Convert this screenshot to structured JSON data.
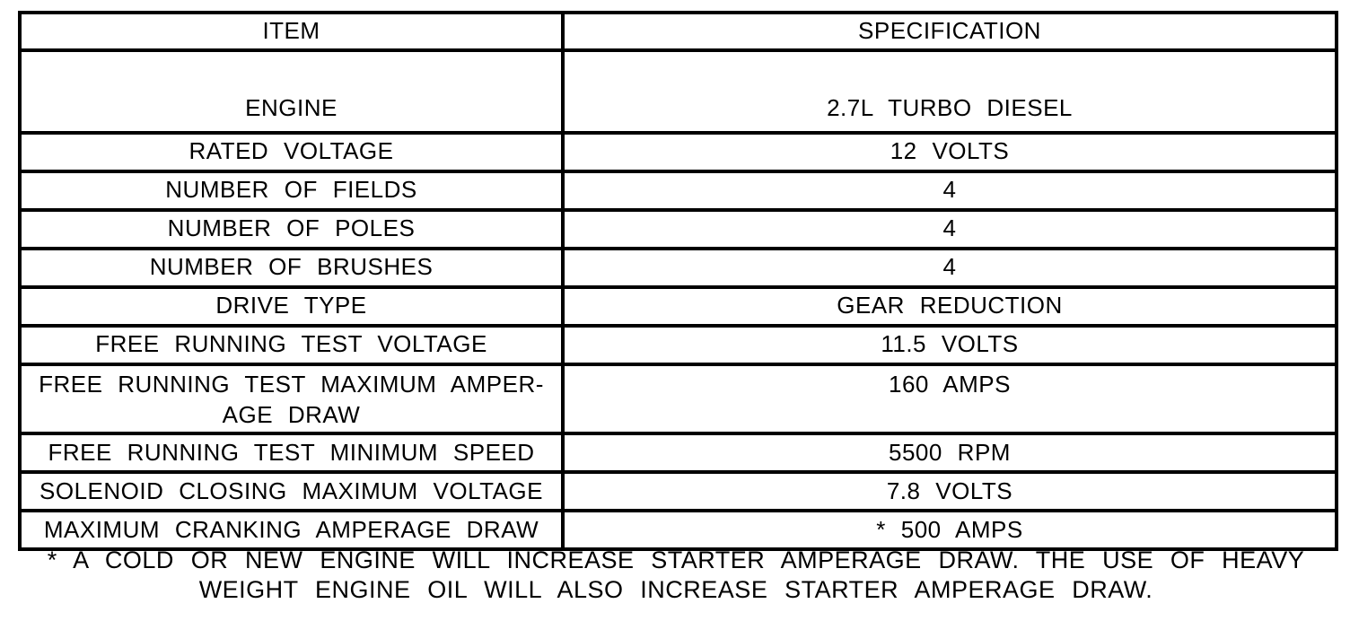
{
  "page": {
    "background_color": "#ffffff",
    "text_color": "#000000",
    "border_color": "#000000"
  },
  "table": {
    "columns": [
      "ITEM",
      "SPECIFICATION"
    ],
    "rows": [
      {
        "item": "ENGINE",
        "spec": "2.7L TURBO DIESEL"
      },
      {
        "item": "RATED VOLTAGE",
        "spec": "12 VOLTS"
      },
      {
        "item": "NUMBER OF FIELDS",
        "spec": "4"
      },
      {
        "item": "NUMBER OF POLES",
        "spec": "4"
      },
      {
        "item": "NUMBER OF BRUSHES",
        "spec": "4"
      },
      {
        "item": "DRIVE TYPE",
        "spec": "GEAR REDUCTION"
      },
      {
        "item": "FREE RUNNING TEST VOLTAGE",
        "spec": "11.5 VOLTS"
      },
      {
        "item": "FREE RUNNING TEST MAXIMUM AMPER-\nAGE DRAW",
        "spec": "160 AMPS"
      },
      {
        "item": "FREE RUNNING TEST MINIMUM SPEED",
        "spec": "5500 RPM"
      },
      {
        "item": "SOLENOID CLOSING MAXIMUM VOLTAGE",
        "spec": "7.8 VOLTS"
      },
      {
        "item": "MAXIMUM CRANKING AMPERAGE DRAW",
        "spec": "* 500 AMPS"
      }
    ],
    "footnote": "* A COLD OR NEW ENGINE WILL INCREASE STARTER AMPERAGE DRAW. THE USE OF HEAVY WEIGHT ENGINE OIL WILL ALSO INCREASE STARTER AMPERAGE DRAW."
  }
}
